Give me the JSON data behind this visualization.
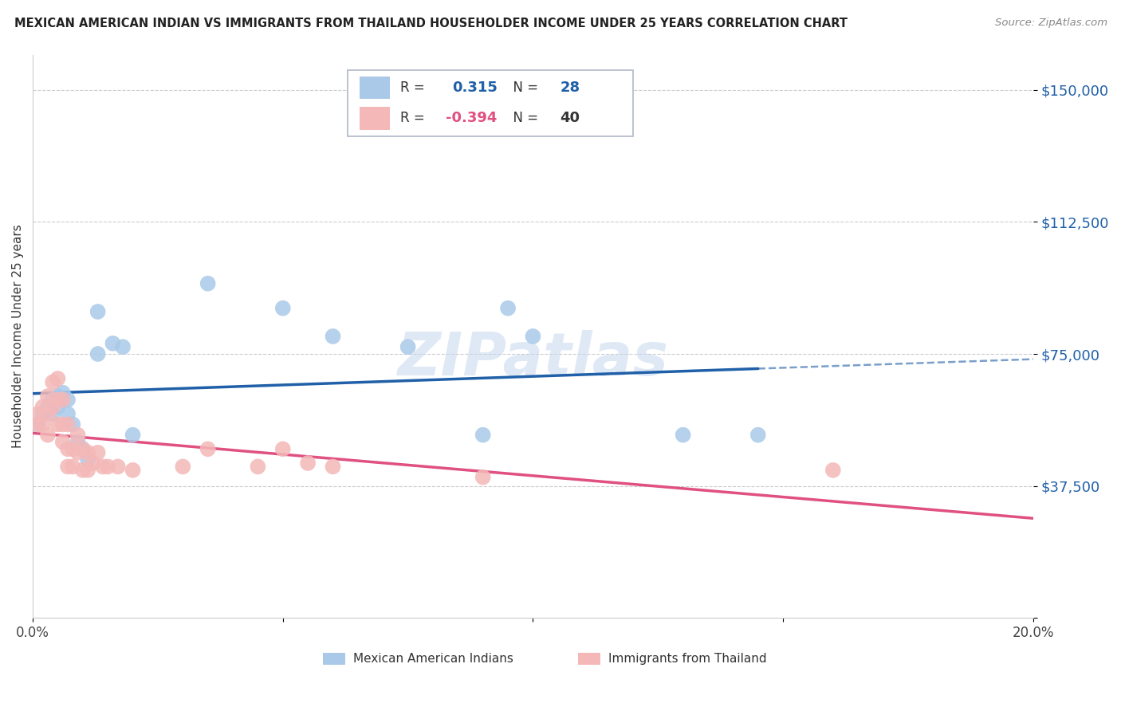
{
  "title": "MEXICAN AMERICAN INDIAN VS IMMIGRANTS FROM THAILAND HOUSEHOLDER INCOME UNDER 25 YEARS CORRELATION CHART",
  "source": "Source: ZipAtlas.com",
  "ylabel": "Householder Income Under 25 years",
  "xlim": [
    0.0,
    0.2
  ],
  "ylim": [
    0,
    160000
  ],
  "yticks": [
    0,
    37500,
    75000,
    112500,
    150000
  ],
  "ytick_labels": [
    "",
    "$37,500",
    "$75,000",
    "$112,500",
    "$150,000"
  ],
  "xticks": [
    0.0,
    0.05,
    0.1,
    0.15,
    0.2
  ],
  "xtick_labels": [
    "0.0%",
    "",
    "",
    "",
    "20.0%"
  ],
  "legend1_r": "0.315",
  "legend1_n": "28",
  "legend2_r": "-0.394",
  "legend2_n": "40",
  "blue_color": "#aac9e8",
  "pink_color": "#f4b8b8",
  "blue_line_color": "#2060a8",
  "pink_line_color": "#e05080",
  "watermark": "ZIPatlas",
  "blue_x": [
    0.001,
    0.002,
    0.003,
    0.004,
    0.004,
    0.005,
    0.005,
    0.006,
    0.007,
    0.007,
    0.008,
    0.009,
    0.01,
    0.011,
    0.013,
    0.013,
    0.016,
    0.018,
    0.02,
    0.035,
    0.05,
    0.06,
    0.075,
    0.09,
    0.095,
    0.1,
    0.13,
    0.145
  ],
  "blue_y": [
    55000,
    58000,
    60000,
    62000,
    58000,
    63000,
    60000,
    64000,
    62000,
    58000,
    55000,
    50000,
    48000,
    45000,
    75000,
    87000,
    78000,
    77000,
    52000,
    95000,
    88000,
    80000,
    77000,
    52000,
    88000,
    80000,
    52000,
    52000
  ],
  "pink_x": [
    0.001,
    0.001,
    0.002,
    0.002,
    0.003,
    0.003,
    0.003,
    0.004,
    0.004,
    0.005,
    0.005,
    0.005,
    0.006,
    0.006,
    0.006,
    0.007,
    0.007,
    0.007,
    0.008,
    0.008,
    0.009,
    0.009,
    0.01,
    0.01,
    0.011,
    0.011,
    0.012,
    0.013,
    0.014,
    0.015,
    0.017,
    0.02,
    0.03,
    0.035,
    0.045,
    0.05,
    0.055,
    0.06,
    0.09,
    0.16
  ],
  "pink_y": [
    58000,
    55000,
    60000,
    55000,
    63000,
    58000,
    52000,
    67000,
    60000,
    68000,
    62000,
    55000,
    62000,
    55000,
    50000,
    55000,
    48000,
    43000,
    48000,
    43000,
    52000,
    47000,
    48000,
    42000,
    47000,
    42000,
    44000,
    47000,
    43000,
    43000,
    43000,
    42000,
    43000,
    48000,
    43000,
    48000,
    44000,
    43000,
    40000,
    42000
  ]
}
